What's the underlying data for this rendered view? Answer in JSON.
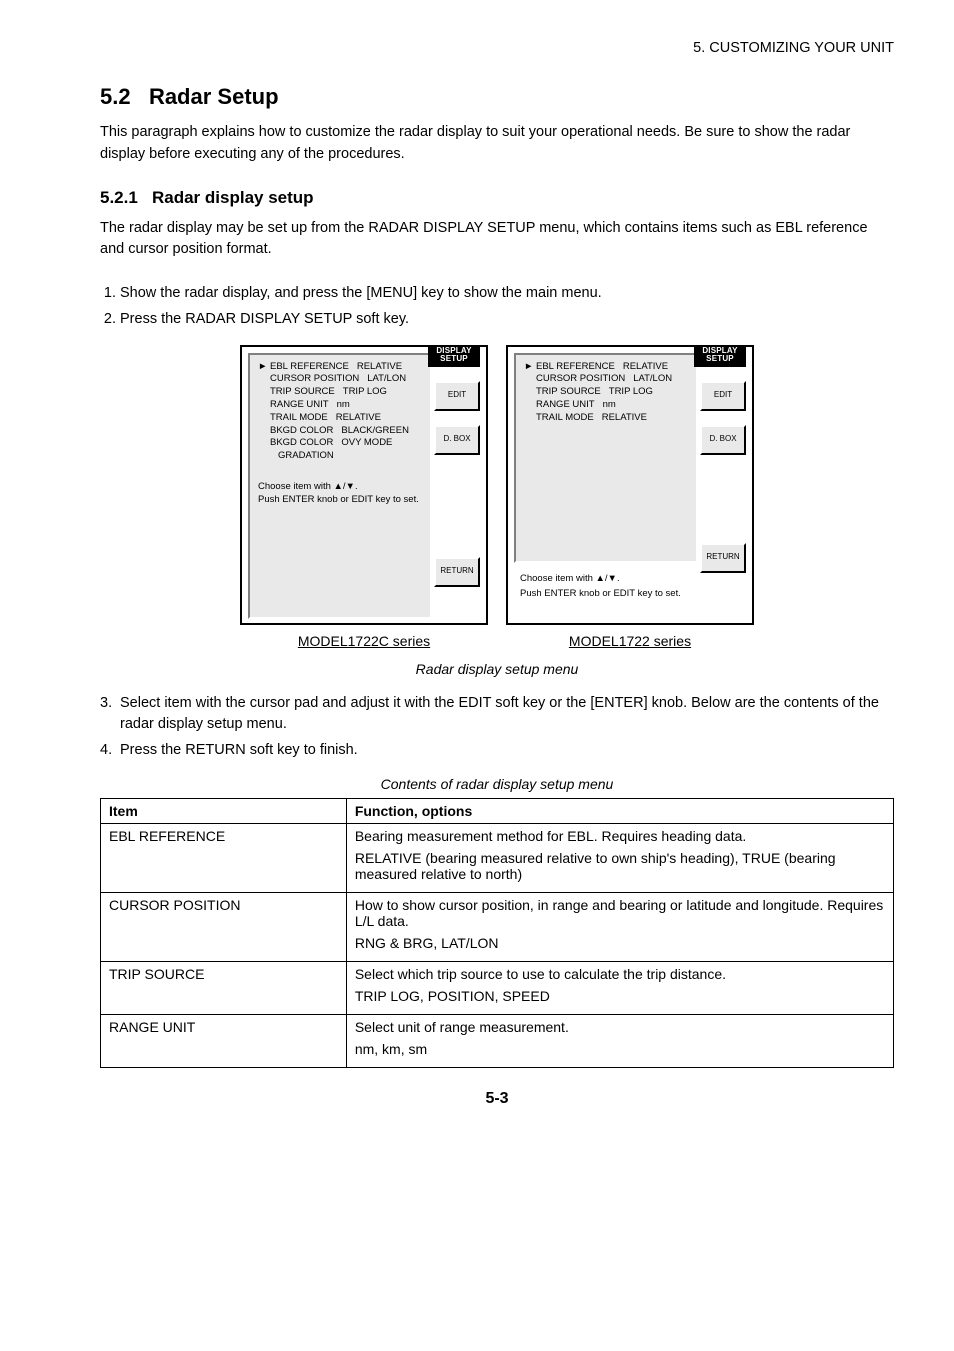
{
  "header": {
    "running": "5. CUSTOMIZING YOUR UNIT"
  },
  "section": {
    "number": "5.2",
    "title": "Radar Setup",
    "intro": "This paragraph explains how to customize the radar display to suit your operational needs. Be sure to show the radar display before executing any of the procedures."
  },
  "subsection": {
    "number": "5.2.1",
    "title": "Radar display setup",
    "intro": "The radar display may be set up from the RADAR DISPLAY SETUP menu, which contains items such as EBL reference and cursor position format.",
    "steps12": [
      "Show the radar display, and press the [MENU] key to show the main menu.",
      "Press the RADAR DISPLAY SETUP soft key."
    ],
    "steps3plus": [
      "Select item with the cursor pad and adjust it with the EDIT soft key or the [ENTER] knob. Below are the contents of the radar display setup menu.",
      "Press the RETURN soft key to finish."
    ]
  },
  "figure": {
    "tab_label_1": "DISPLAY",
    "tab_label_2": "SETUP",
    "left": {
      "menu": [
        {
          "arrow": "►",
          "k": "EBL REFERENCE",
          "v": "RELATIVE"
        },
        {
          "arrow": "",
          "k": "CURSOR POSITION",
          "v": "LAT/LON"
        },
        {
          "arrow": "",
          "k": "TRIP SOURCE",
          "v": "TRIP LOG"
        },
        {
          "arrow": "",
          "k": "RANGE UNIT",
          "v": "nm"
        },
        {
          "arrow": "",
          "k": "TRAIL MODE",
          "v": "RELATIVE"
        },
        {
          "arrow": "",
          "k": "BKGD COLOR",
          "v": "BLACK/GREEN"
        },
        {
          "arrow": "",
          "k": "BKGD COLOR",
          "v": "OVY MODE"
        },
        {
          "arrow": "",
          "k": "",
          "v": "GRADATION"
        }
      ],
      "directions_1": "Choose item with ▲/▼.",
      "directions_2": "Push ENTER knob or EDIT key to set.",
      "soft_edit": "EDIT",
      "soft_dr1": "D. BOX",
      "soft_return": "RETURN",
      "caption": "MODEL1722C series"
    },
    "right": {
      "menu": [
        {
          "arrow": "►",
          "k": "EBL REFERENCE",
          "v": "RELATIVE"
        },
        {
          "arrow": "",
          "k": "CURSOR POSITION",
          "v": "LAT/LON"
        },
        {
          "arrow": "",
          "k": "TRIP SOURCE",
          "v": "TRIP LOG"
        },
        {
          "arrow": "",
          "k": "RANGE UNIT",
          "v": "nm"
        },
        {
          "arrow": "",
          "k": "TRAIL MODE",
          "v": "RELATIVE"
        }
      ],
      "directions_1": "Choose item with ▲/▼.",
      "directions_2": "Push ENTER knob or EDIT key to set.",
      "soft_edit": "EDIT",
      "soft_dr1": "D. BOX",
      "soft_return": "RETURN",
      "caption": "MODEL1722 series"
    },
    "caption": "Radar display setup menu"
  },
  "table": {
    "title": "Contents of radar display setup menu",
    "columns": [
      "Item",
      "Function, options"
    ],
    "rows": [
      {
        "item": "EBL REFERENCE",
        "body": "Bearing measurement method for EBL. Requires heading data.",
        "opts": "RELATIVE (bearing measured relative to own ship's heading), TRUE (bearing measured relative to north)"
      },
      {
        "item": "CURSOR POSITION",
        "body": "How to show cursor position, in range and bearing or latitude and longitude. Requires L/L data.",
        "opts": "RNG & BRG, LAT/LON"
      },
      {
        "item": "TRIP SOURCE",
        "body": "Select which trip source to use to calculate the trip distance.",
        "opts": "TRIP LOG, POSITION, SPEED"
      },
      {
        "item": "RANGE UNIT",
        "body": "Select unit of range measurement.",
        "opts": "nm, km, sm"
      }
    ]
  },
  "page_number": "5-3",
  "colors": {
    "page_bg": "#ffffff",
    "text": "#000000",
    "panel_bg": "#e8e9e8",
    "tab_bg": "#000000",
    "tab_text": "#ffffff"
  },
  "typography": {
    "body_pt": 14.5,
    "h2_pt": 22,
    "h3_pt": 17,
    "caption_pt": 14,
    "screen_pt": 9.5
  }
}
